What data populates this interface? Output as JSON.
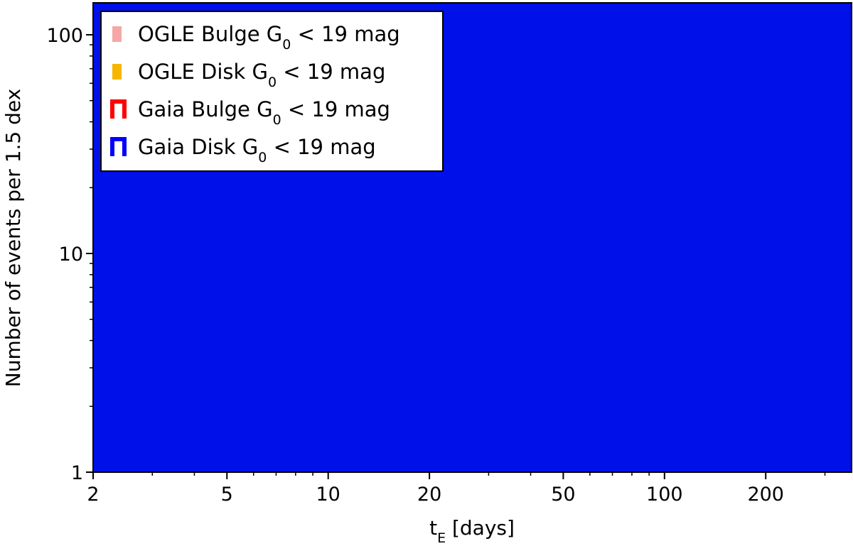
{
  "chart_data": {
    "type": "bar",
    "x_scale": "log",
    "y_scale": "log",
    "xlim": [
      2,
      360
    ],
    "ylim": [
      1,
      140
    ],
    "x_ticks": [
      2,
      5,
      10,
      20,
      50,
      100,
      200
    ],
    "x_tick_labels": [
      "2",
      "5",
      "10",
      "20",
      "50",
      "100",
      "200"
    ],
    "y_ticks": [
      1,
      10,
      100
    ],
    "y_tick_labels": [
      "1",
      "10",
      "100"
    ],
    "xlabel": {
      "base": "t",
      "sub": "E",
      "suffix": " [days]"
    },
    "ylabel": "Number of events per 1.5 dex",
    "title": "",
    "legend_position": "upper-left",
    "grid": false,
    "series": [
      {
        "name": {
          "pre": "OGLE Bulge G",
          "sub": "0",
          "post": " < 19 mag"
        },
        "color": "#f5a7a7",
        "style": "filled"
      },
      {
        "name": {
          "pre": "OGLE Disk G",
          "sub": "0",
          "post": " < 19 mag"
        },
        "color": "#f7b500",
        "style": "filled"
      },
      {
        "name": {
          "pre": "Gaia Bulge G",
          "sub": "0",
          "post": " < 19 mag"
        },
        "color": "#ff0000",
        "style": "step"
      },
      {
        "name": {
          "pre": "Gaia Disk G",
          "sub": "0",
          "post": " < 19 mag"
        },
        "color": "#0000ff",
        "style": "step"
      }
    ],
    "plot_fill_color": "#0010e8"
  }
}
